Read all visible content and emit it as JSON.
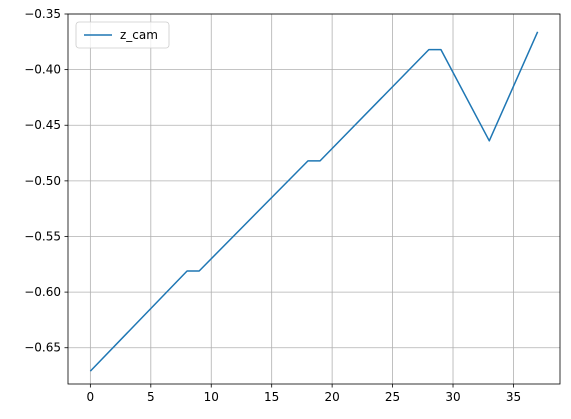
{
  "chart_data": {
    "type": "line",
    "title": "",
    "xlabel": "",
    "ylabel": "",
    "xlim": [
      -1.85,
      38.85
    ],
    "ylim": [
      -0.6826,
      -0.35
    ],
    "xticks": [
      0,
      5,
      10,
      15,
      20,
      25,
      30,
      35
    ],
    "xtick_labels": [
      "0",
      "5",
      "10",
      "15",
      "20",
      "25",
      "30",
      "35"
    ],
    "yticks": [
      -0.65,
      -0.6,
      -0.55,
      -0.5,
      -0.45,
      -0.4,
      -0.35
    ],
    "ytick_labels": [
      "−0.65",
      "−0.60",
      "−0.55",
      "−0.50",
      "−0.45",
      "−0.40",
      "−0.35"
    ],
    "grid": true,
    "legend_position": "top-left",
    "series": [
      {
        "name": "z_cam",
        "color": "#1f77b4",
        "x": [
          0,
          8,
          9,
          18,
          19,
          28,
          29,
          33,
          37
        ],
        "y": [
          -0.671,
          -0.581,
          -0.581,
          -0.482,
          -0.482,
          -0.382,
          -0.382,
          -0.464,
          -0.366
        ]
      }
    ]
  }
}
